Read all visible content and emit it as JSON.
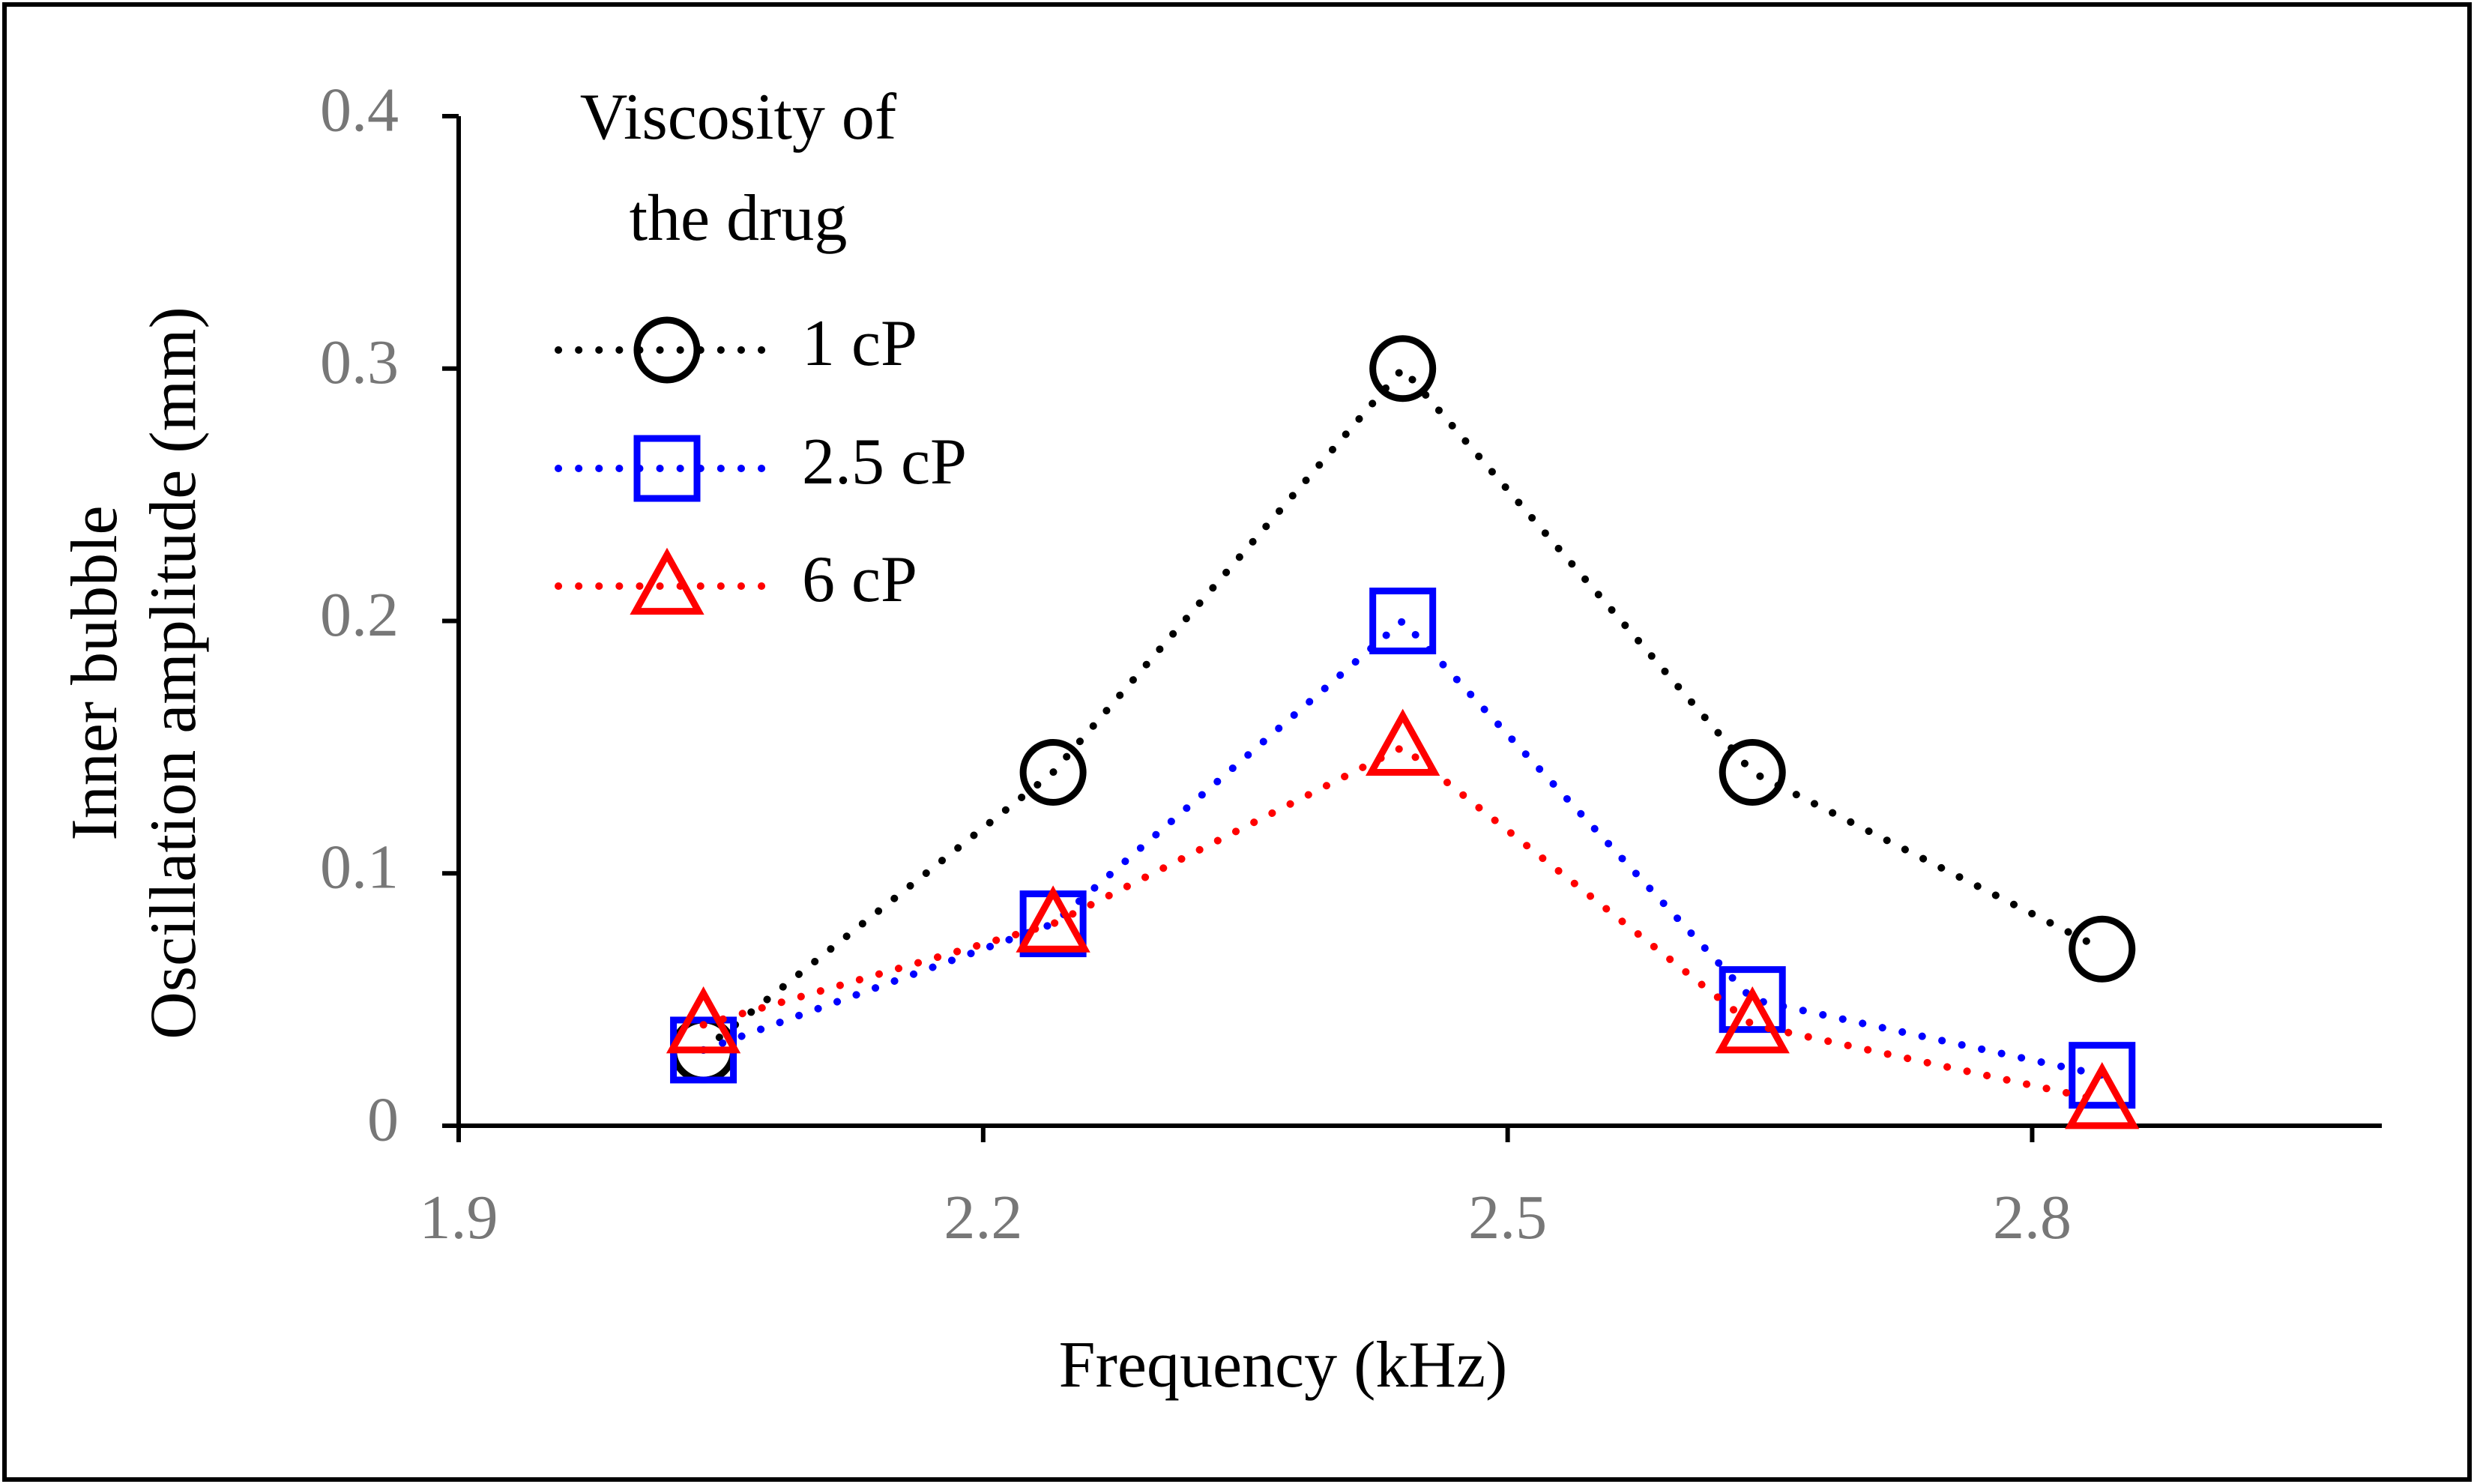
{
  "chart_data": {
    "type": "line",
    "title": "",
    "xlabel": "Frequency (kHz)",
    "ylabel_lines": [
      "Inner bubble",
      "Oscillation amplitude (mm)"
    ],
    "xlim": [
      1.9,
      3.0
    ],
    "ylim": [
      0,
      0.4
    ],
    "x_ticks": [
      1.9,
      2.2,
      2.5,
      2.8
    ],
    "x_tick_labels": [
      "1.9",
      "2.2",
      "2.5",
      "2.8"
    ],
    "y_ticks": [
      0,
      0.1,
      0.2,
      0.3,
      0.4
    ],
    "y_tick_labels": [
      "0",
      "0.1",
      "0.2",
      "0.3",
      "0.4"
    ],
    "grid": false,
    "legend": {
      "title_lines": [
        "Viscosity of",
        "the drug"
      ],
      "placement": "top-left"
    },
    "x": [
      2.04,
      2.24,
      2.44,
      2.64,
      2.84
    ],
    "series": [
      {
        "name": "1 cP",
        "marker": "circle",
        "color": "#000000",
        "values": [
          0.03,
          0.14,
          0.3,
          0.14,
          0.07
        ]
      },
      {
        "name": "2.5 cP",
        "marker": "square",
        "color": "#0000FF",
        "values": [
          0.03,
          0.08,
          0.2,
          0.05,
          0.02
        ]
      },
      {
        "name": "6 cP",
        "marker": "triangle",
        "color": "#FF0000",
        "values": [
          0.04,
          0.08,
          0.15,
          0.04,
          0.01
        ]
      }
    ]
  }
}
